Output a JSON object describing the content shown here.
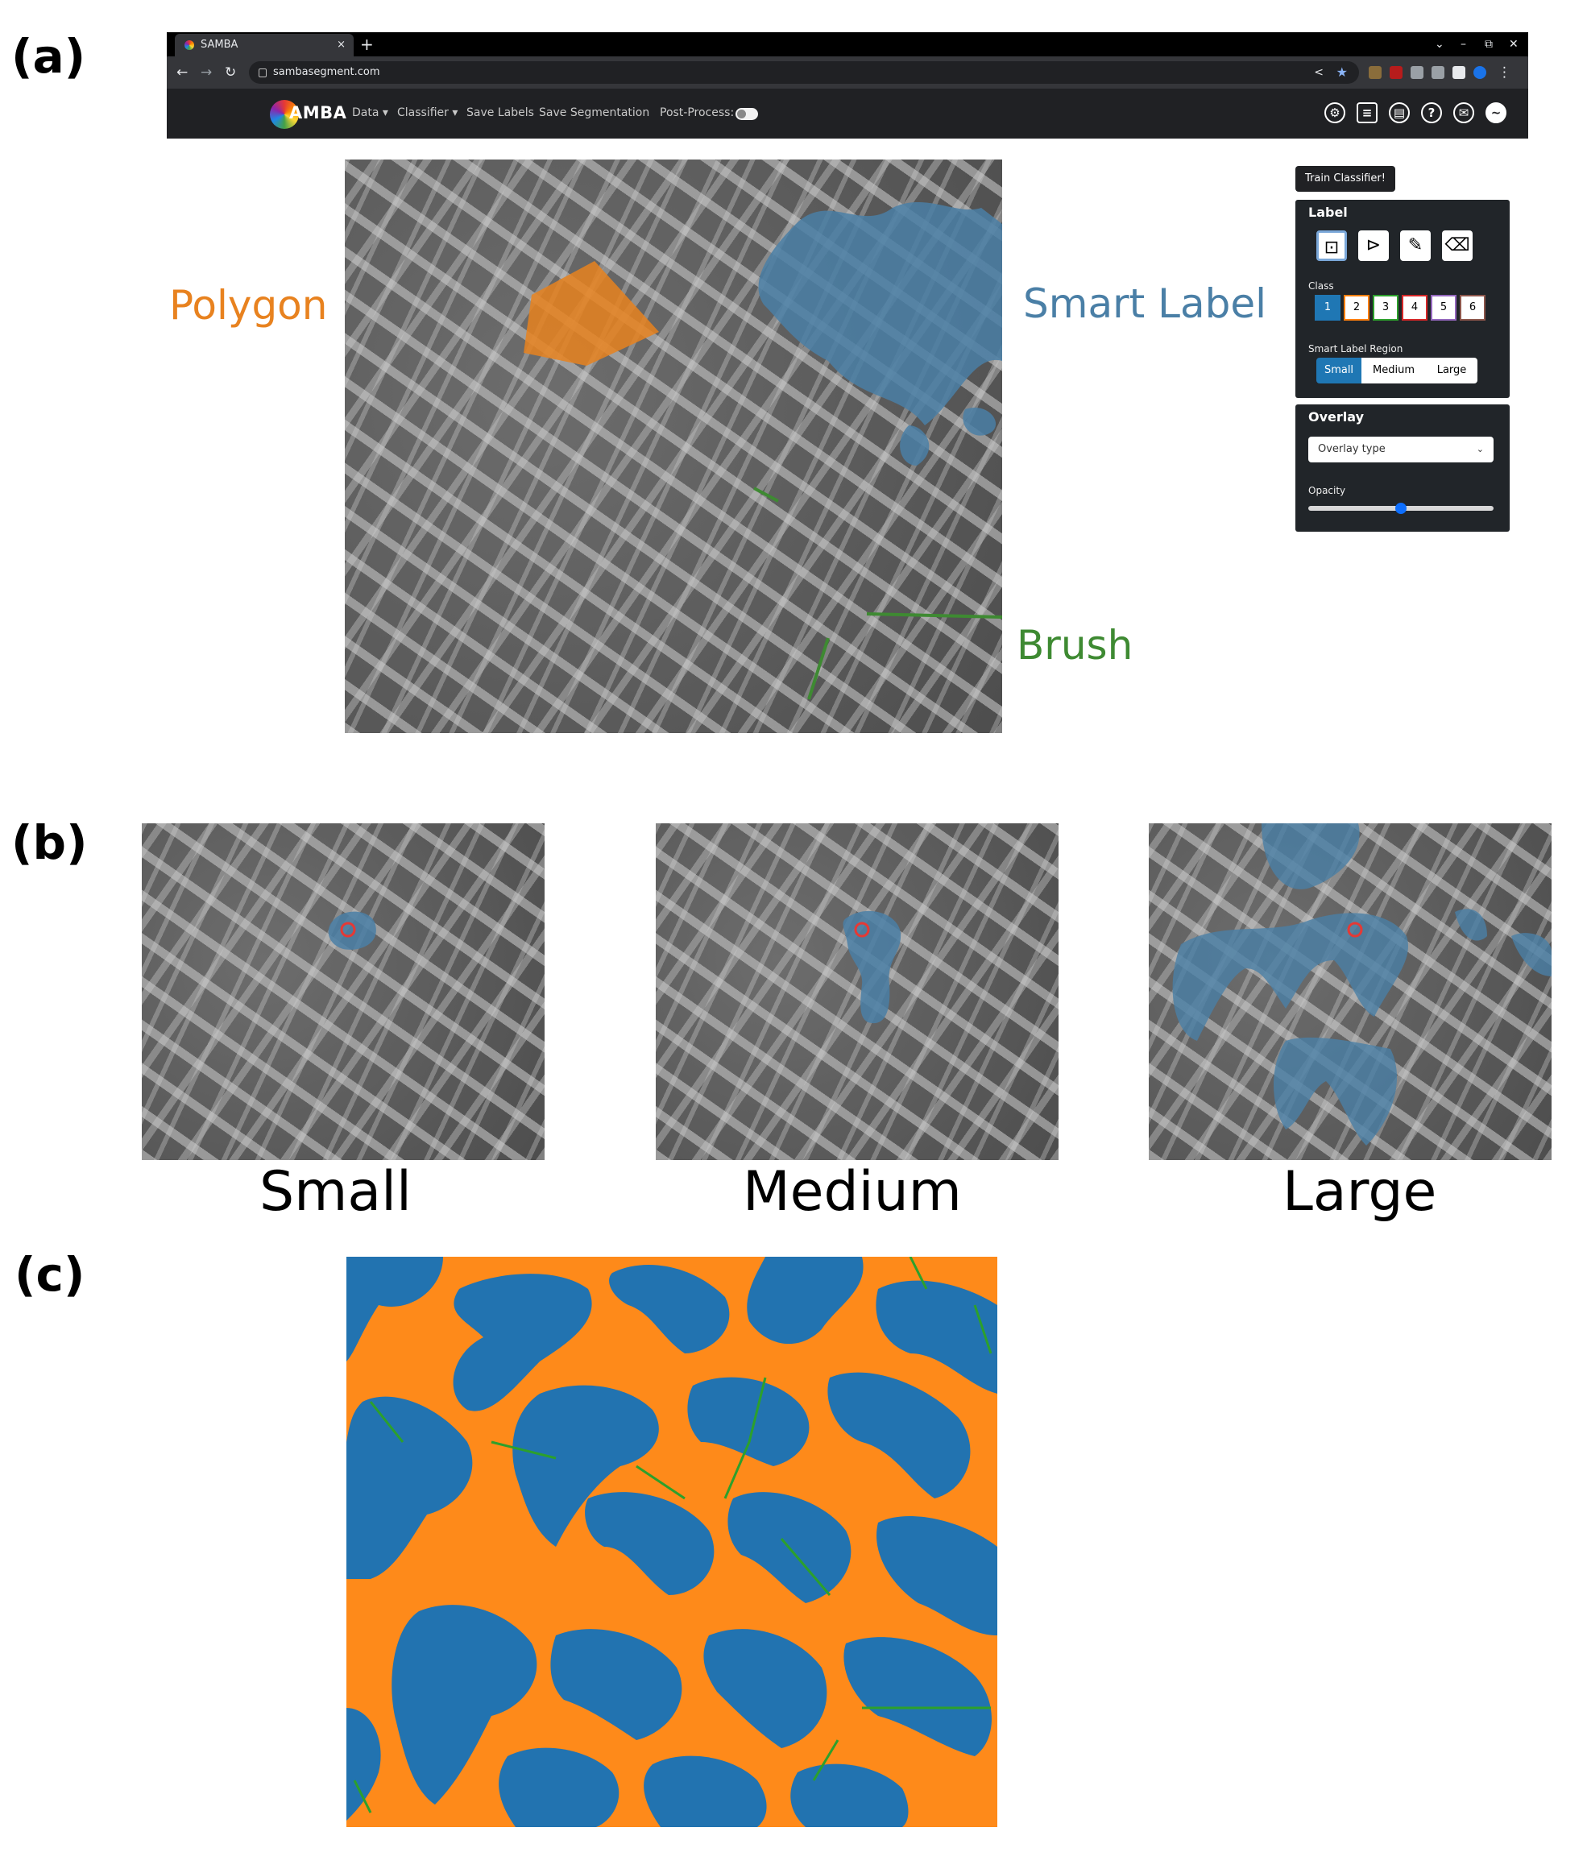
{
  "panels": {
    "a": "(a)",
    "b": "(b)",
    "c": "(c)"
  },
  "browser": {
    "tab_title": "SAMBA",
    "tab_close": "×",
    "new_tab": "+",
    "window_controls": [
      "⌄",
      "–",
      "⧉",
      "✕"
    ],
    "url": "sambasegment.com",
    "nav": {
      "back": "←",
      "forward": "→",
      "reload": "↻"
    }
  },
  "app": {
    "logo_text": "AMBA",
    "menus": [
      "Data ▾",
      "Classifier ▾",
      "Save Labels",
      "Save Segmentation"
    ],
    "postprocess_label": "Post-Process:",
    "right_icons": [
      "gear-icon",
      "notebook-icon",
      "document-icon",
      "help-icon",
      "mail-icon",
      "theme-icon"
    ]
  },
  "annotations": {
    "polygon": "Polygon",
    "smart_label": "Smart Label",
    "brush": "Brush",
    "colors": {
      "polygon": "#e8821f",
      "smart_label": "#4a7fa6",
      "brush": "#3e8a32"
    }
  },
  "controls": {
    "train_tooltip": "Train Classifier!",
    "label_title": "Label",
    "tools": [
      "smart-label-icon",
      "polygon-icon",
      "brush-icon",
      "eraser-icon"
    ],
    "class_title": "Class",
    "classes": [
      "1",
      "2",
      "3",
      "4",
      "5",
      "6"
    ],
    "class_colors": [
      "#1f77b4",
      "#ff7f0e",
      "#2ca02c",
      "#d62728",
      "#9467bd",
      "#8c564b"
    ],
    "region_title": "Smart Label Region",
    "regions": [
      "Small",
      "Medium",
      "Large"
    ],
    "overlay_title": "Overlay",
    "overlay_select": "Overlay type",
    "opacity_label": "Opacity",
    "opacity": 0.5
  },
  "captions": {
    "small": "Small",
    "medium": "Medium",
    "large": "Large"
  },
  "segmentation_colors": {
    "class1": "#2273b0",
    "class2": "#fe8a1a",
    "class3": "#2ca02c"
  }
}
